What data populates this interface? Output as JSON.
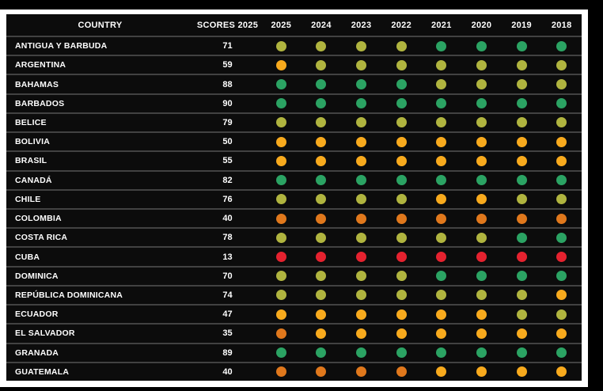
{
  "theme": {
    "canvas_bg": "#000000",
    "frame_bg": "#ffffff",
    "table_bg": "#0c0c0c",
    "row_divider": "#424242",
    "text_color": "#ffffff"
  },
  "chart_data": {
    "type": "heatmap",
    "title": "",
    "header": {
      "country_label": "COUNTRY",
      "scores_label": "SCORES 2025",
      "years": [
        "2025",
        "2024",
        "2023",
        "2022",
        "2021",
        "2020",
        "2019",
        "2018"
      ]
    },
    "status_colors": {
      "green": "#2ba363",
      "yellowgreen": "#b0b43f",
      "yellow": "#f8aa1d",
      "orange": "#e0781c",
      "red": "#e5222f"
    },
    "rows": [
      {
        "country": "ANTIGUA Y BARBUDA",
        "score": "71",
        "status_by_year": [
          "yellowgreen",
          "yellowgreen",
          "yellowgreen",
          "yellowgreen",
          "green",
          "green",
          "green",
          "green"
        ]
      },
      {
        "country": "ARGENTINA",
        "score": "59",
        "status_by_year": [
          "yellow",
          "yellowgreen",
          "yellowgreen",
          "yellowgreen",
          "yellowgreen",
          "yellowgreen",
          "yellowgreen",
          "yellowgreen"
        ]
      },
      {
        "country": "BAHAMAS",
        "score": "88",
        "status_by_year": [
          "green",
          "green",
          "green",
          "green",
          "yellowgreen",
          "yellowgreen",
          "yellowgreen",
          "yellowgreen"
        ]
      },
      {
        "country": "BARBADOS",
        "score": "90",
        "status_by_year": [
          "green",
          "green",
          "green",
          "green",
          "green",
          "green",
          "green",
          "green"
        ]
      },
      {
        "country": "BELICE",
        "score": "79",
        "status_by_year": [
          "yellowgreen",
          "yellowgreen",
          "yellowgreen",
          "yellowgreen",
          "yellowgreen",
          "yellowgreen",
          "yellowgreen",
          "yellowgreen"
        ]
      },
      {
        "country": "BOLIVIA",
        "score": "50",
        "status_by_year": [
          "yellow",
          "yellow",
          "yellow",
          "yellow",
          "yellow",
          "yellow",
          "yellow",
          "yellow"
        ]
      },
      {
        "country": "BRASIL",
        "score": "55",
        "status_by_year": [
          "yellow",
          "yellow",
          "yellow",
          "yellow",
          "yellow",
          "yellow",
          "yellow",
          "yellow"
        ]
      },
      {
        "country": "CANADÁ",
        "score": "82",
        "status_by_year": [
          "green",
          "green",
          "green",
          "green",
          "green",
          "green",
          "green",
          "green"
        ]
      },
      {
        "country": "CHILE",
        "score": "76",
        "status_by_year": [
          "yellowgreen",
          "yellowgreen",
          "yellowgreen",
          "yellowgreen",
          "yellow",
          "yellow",
          "yellowgreen",
          "yellowgreen"
        ]
      },
      {
        "country": "COLOMBIA",
        "score": "40",
        "status_by_year": [
          "orange",
          "orange",
          "orange",
          "orange",
          "orange",
          "orange",
          "orange",
          "orange"
        ]
      },
      {
        "country": "COSTA RICA",
        "score": "78",
        "status_by_year": [
          "yellowgreen",
          "yellowgreen",
          "yellowgreen",
          "yellowgreen",
          "yellowgreen",
          "yellowgreen",
          "green",
          "green"
        ]
      },
      {
        "country": "CUBA",
        "score": "13",
        "status_by_year": [
          "red",
          "red",
          "red",
          "red",
          "red",
          "red",
          "red",
          "red"
        ]
      },
      {
        "country": "DOMINICA",
        "score": "70",
        "status_by_year": [
          "yellowgreen",
          "yellowgreen",
          "yellowgreen",
          "yellowgreen",
          "green",
          "green",
          "green",
          "green"
        ]
      },
      {
        "country": "REPÚBLICA DOMINICANA",
        "score": "74",
        "status_by_year": [
          "yellowgreen",
          "yellowgreen",
          "yellowgreen",
          "yellowgreen",
          "yellowgreen",
          "yellowgreen",
          "yellowgreen",
          "yellow"
        ]
      },
      {
        "country": "ECUADOR",
        "score": "47",
        "status_by_year": [
          "yellow",
          "yellow",
          "yellow",
          "yellow",
          "yellow",
          "yellow",
          "yellowgreen",
          "yellowgreen"
        ]
      },
      {
        "country": "EL SALVADOR",
        "score": "35",
        "status_by_year": [
          "orange",
          "yellow",
          "yellow",
          "yellow",
          "yellow",
          "yellow",
          "yellow",
          "yellow"
        ]
      },
      {
        "country": "GRANADA",
        "score": "89",
        "status_by_year": [
          "green",
          "green",
          "green",
          "green",
          "green",
          "green",
          "green",
          "green"
        ]
      },
      {
        "country": "GUATEMALA",
        "score": "40",
        "status_by_year": [
          "orange",
          "orange",
          "orange",
          "orange",
          "yellow",
          "yellow",
          "yellow",
          "yellow"
        ]
      }
    ]
  }
}
